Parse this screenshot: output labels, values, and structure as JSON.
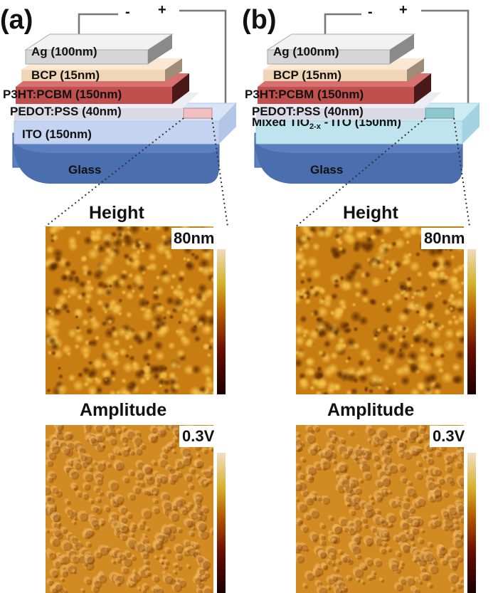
{
  "panels": [
    {
      "label": "(a)",
      "layers": {
        "ag": "Ag (100nm)",
        "bcp": "BCP (15nm)",
        "p3ht": "P3HT:PCBM (150nm)",
        "pedot": "PEDOT:PSS (40nm)",
        "ito": "ITO (150nm)",
        "glass": "Glass"
      },
      "terminals": {
        "minus": "-",
        "plus": "+"
      },
      "height": {
        "title": "Height",
        "scale_max": "80nm"
      },
      "amplitude": {
        "title": "Amplitude",
        "scale_max": "0.3V"
      }
    },
    {
      "label": "(b)",
      "layers": {
        "ag": "Ag (100nm)",
        "bcp": "BCP (15nm)",
        "p3ht": "P3HT:PCBM (150nm)",
        "pedot": "PEDOT:PSS (40nm)",
        "ito": "Mixed TiO",
        "ito_sub": "2-x",
        "ito_rest": " - ITO (150nm)",
        "glass": "Glass"
      },
      "terminals": {
        "minus": "-",
        "plus": "+"
      },
      "height": {
        "title": "Height",
        "scale_max": "80nm"
      },
      "amplitude": {
        "title": "Amplitude",
        "scale_max": "0.3V"
      }
    }
  ],
  "colors": {
    "glass": "#5b7fbf",
    "ito_a": "#d8e4f7",
    "ito_b": "#bfe4ee",
    "pedot": "#e8e8ee",
    "p3ht": "#c0504d",
    "bcp": "#f5dcc0",
    "ag": "#d9d9d9",
    "afm_height": "#c87d12",
    "afm_amplitude": "#d28a22"
  }
}
